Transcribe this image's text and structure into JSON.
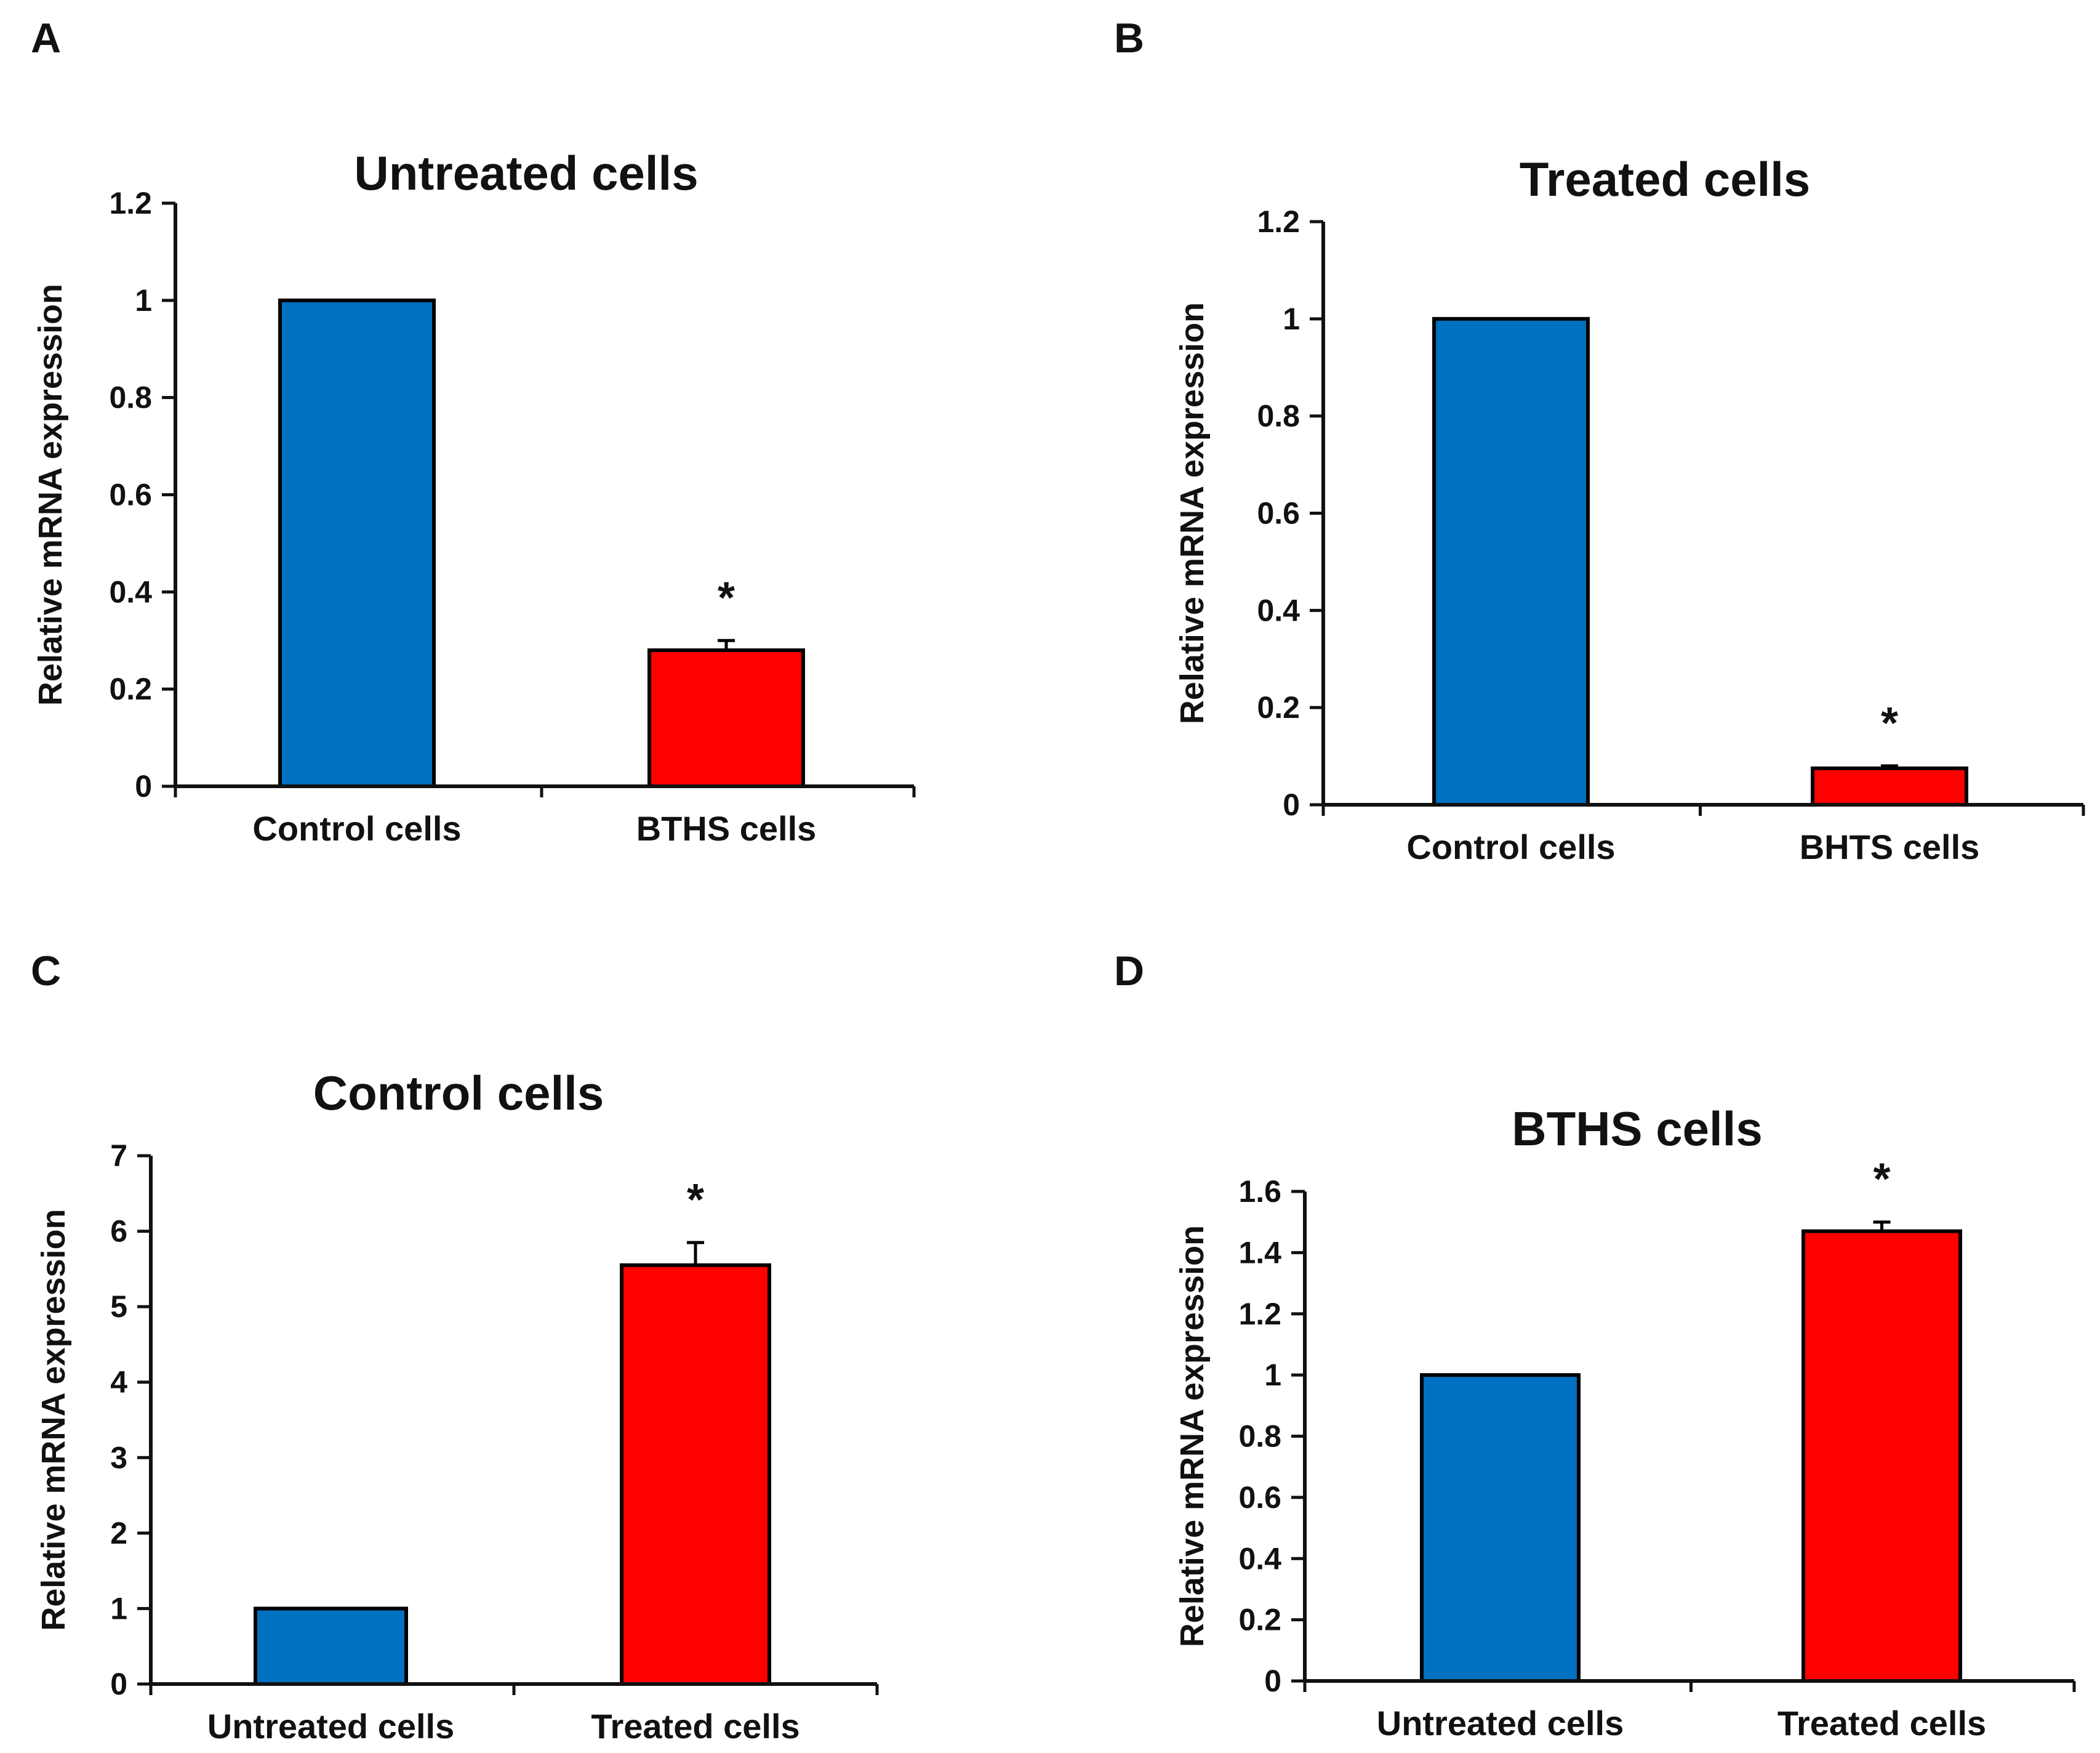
{
  "colors": {
    "blue": "#0070C0",
    "red": "#FF0000",
    "axis": "#111111"
  },
  "chart_data": [
    {
      "panel": "A",
      "type": "bar",
      "title": "Untreated cells",
      "ylabel": "Relative mRNA expression",
      "xlabel": "",
      "categories": [
        "Control cells",
        "BTHS cells"
      ],
      "values": [
        1.0,
        0.28
      ],
      "errors": [
        0,
        0.02
      ],
      "significance": [
        "",
        "*"
      ],
      "colors": [
        "#0070C0",
        "#FF0000"
      ],
      "ylim": [
        0,
        1.2
      ],
      "yticks": [
        0,
        0.2,
        0.4,
        0.6,
        0.8,
        1,
        1.2
      ],
      "ytick_labels": [
        "0",
        "0.2",
        "0.4",
        "0.6",
        "0.8",
        "1",
        "1.2"
      ]
    },
    {
      "panel": "B",
      "type": "bar",
      "title": "Treated cells",
      "ylabel": "Relative mRNA expression",
      "xlabel": "",
      "categories": [
        "Control cells",
        "BHTS cells"
      ],
      "values": [
        1.0,
        0.075
      ],
      "errors": [
        0,
        0.005
      ],
      "significance": [
        "",
        "*"
      ],
      "colors": [
        "#0070C0",
        "#FF0000"
      ],
      "ylim": [
        0,
        1.2
      ],
      "yticks": [
        0,
        0.2,
        0.4,
        0.6,
        0.8,
        1,
        1.2
      ],
      "ytick_labels": [
        "0",
        "0.2",
        "0.4",
        "0.6",
        "0.8",
        "1",
        "1.2"
      ]
    },
    {
      "panel": "C",
      "type": "bar",
      "title": "Control cells",
      "ylabel": "Relative mRNA expression",
      "xlabel": "",
      "categories": [
        "Untreated cells",
        "Treated cells"
      ],
      "values": [
        1.0,
        5.55
      ],
      "errors": [
        0,
        0.3
      ],
      "significance": [
        "",
        "*"
      ],
      "colors": [
        "#0070C0",
        "#FF0000"
      ],
      "ylim": [
        0,
        7
      ],
      "yticks": [
        0,
        1,
        2,
        3,
        4,
        5,
        6,
        7
      ],
      "ytick_labels": [
        "0",
        "1",
        "2",
        "3",
        "4",
        "5",
        "6",
        "7"
      ]
    },
    {
      "panel": "D",
      "type": "bar",
      "title": "BTHS cells",
      "ylabel": "Relative mRNA expression",
      "xlabel": "",
      "categories": [
        "Untreated cells",
        "Treated cells"
      ],
      "values": [
        1.0,
        1.47
      ],
      "errors": [
        0,
        0.03
      ],
      "significance": [
        "",
        "*"
      ],
      "colors": [
        "#0070C0",
        "#FF0000"
      ],
      "ylim": [
        0,
        1.6
      ],
      "yticks": [
        0,
        0.2,
        0.4,
        0.6,
        0.8,
        1,
        1.2,
        1.4,
        1.6
      ],
      "ytick_labels": [
        "0",
        "0.2",
        "0.4",
        "0.6",
        "0.8",
        "1",
        "1.2",
        "1.4",
        "1.6"
      ]
    }
  ]
}
